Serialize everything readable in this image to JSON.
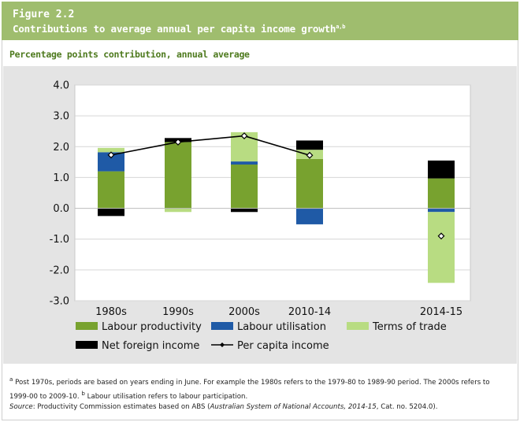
{
  "figure": {
    "number": "Figure 2.2",
    "title": "Contributions to average annual per capita income growth",
    "title_superscript": "a,b",
    "subtitle": "Percentage points contribution, annual average"
  },
  "colors": {
    "labour_productivity": "#78a22f",
    "labour_utilisation": "#1f5aa6",
    "terms_of_trade": "#b8dc82",
    "net_foreign_income": "#000000",
    "per_capita_income": "#000000",
    "header_bg": "#9fbd6e",
    "subtitle_text": "#4e7a1e",
    "plot_bg": "#e4e4e4"
  },
  "chart_data": {
    "type": "bar",
    "stacked": true,
    "categories": [
      "1980s",
      "1990s",
      "2000s",
      "2010-14",
      "2014-15"
    ],
    "ylim": [
      -3.0,
      4.0
    ],
    "yticks": [
      "4.0",
      "3.0",
      "2.0",
      "1.0",
      "0.0",
      "-1.0",
      "-2.0",
      "-3.0"
    ],
    "ytick_values": [
      4,
      3,
      2,
      1,
      0,
      -1,
      -2,
      -3
    ],
    "grid": "horizontal",
    "series": [
      {
        "name": "Labour productivity",
        "key": "labour_productivity",
        "values": [
          1.2,
          2.15,
          1.42,
          1.6,
          0.97
        ]
      },
      {
        "name": "Labour utilisation",
        "key": "labour_utilisation",
        "values": [
          0.62,
          0.0,
          0.1,
          -0.52,
          -0.12
        ]
      },
      {
        "name": "Terms of trade",
        "key": "terms_of_trade",
        "values": [
          0.14,
          -0.12,
          0.95,
          0.3,
          -2.3
        ]
      },
      {
        "name": "Net foreign income",
        "key": "net_foreign_income",
        "values": [
          -0.25,
          0.13,
          -0.12,
          0.3,
          0.58
        ]
      }
    ],
    "line_series": {
      "name": "Per capita income",
      "key": "per_capita_income",
      "values": [
        1.73,
        2.15,
        2.35,
        1.72,
        -0.9
      ],
      "connect_until_index": 3
    },
    "legend": [
      {
        "label": "Labour productivity",
        "key": "labour_productivity",
        "kind": "box"
      },
      {
        "label": "Labour utilisation",
        "key": "labour_utilisation",
        "kind": "box"
      },
      {
        "label": "Terms of trade",
        "key": "terms_of_trade",
        "kind": "box"
      },
      {
        "label": "Net foreign income",
        "key": "net_foreign_income",
        "kind": "box"
      },
      {
        "label": "Per capita income",
        "key": "per_capita_income",
        "kind": "line"
      }
    ],
    "legend_position": "bottom"
  },
  "footnotes": {
    "note_a_marker": "a",
    "note_a": " Post 1970s, periods are based on years ending in June. For example the 1980s refers to the 1979-80 to 1989-90 period. The 2000s refers to 1999-00 to 2009-10. ",
    "note_b_marker": "b",
    "note_b": " Labour utilisation refers to labour participation.",
    "source_label": "Source",
    "source_pre": ": Productivity Commission estimates based on ABS (",
    "source_title": "Australian System of National Accounts, 2014-15",
    "source_post": ", Cat. no. 5204.0)."
  }
}
